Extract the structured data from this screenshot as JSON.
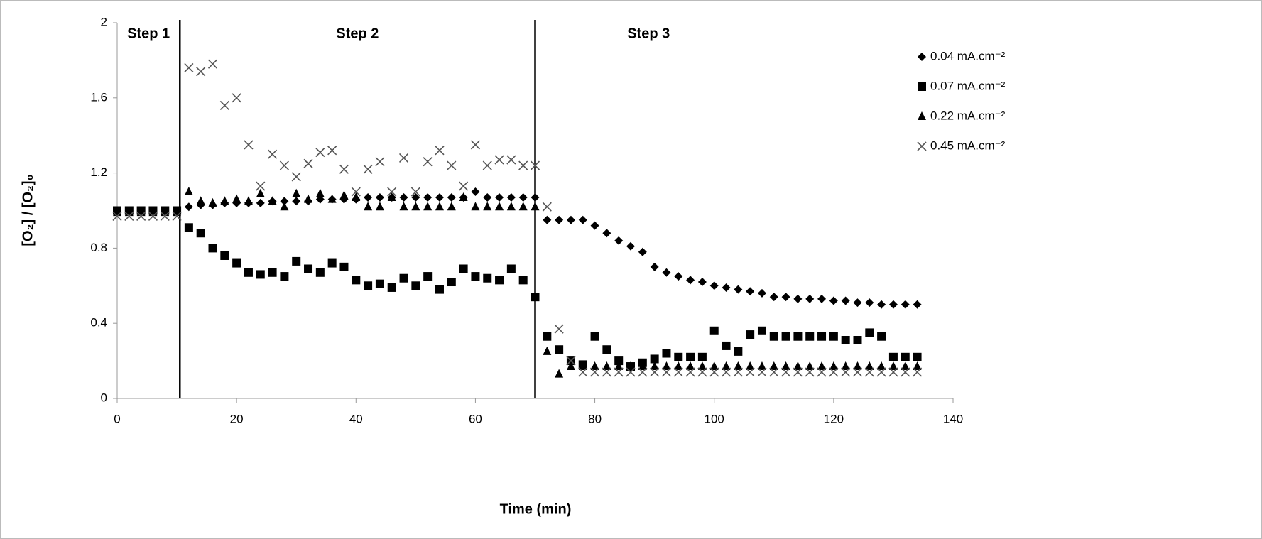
{
  "chart_data": {
    "type": "scatter",
    "x_label": "Time (min)",
    "y_label": "[O₂] / [O₂]₀",
    "annotations": [
      "Step 1",
      "Step 2",
      "Step 3"
    ],
    "vlines": [
      10.5,
      70
    ],
    "xlim": [
      0,
      140
    ],
    "xticks": [
      0,
      20,
      40,
      60,
      80,
      100,
      120,
      140
    ],
    "ylim": [
      0,
      2
    ],
    "yticks": [
      0,
      0.4,
      0.8,
      1.2,
      1.6,
      2
    ],
    "grid": false,
    "legend": "upper right",
    "x": [
      0,
      2,
      4,
      6,
      8,
      10,
      12,
      14,
      16,
      18,
      20,
      22,
      24,
      26,
      28,
      30,
      32,
      34,
      36,
      38,
      40,
      42,
      44,
      46,
      48,
      50,
      52,
      54,
      56,
      58,
      60,
      62,
      64,
      66,
      68,
      70,
      72,
      74,
      76,
      78,
      80,
      82,
      84,
      86,
      88,
      90,
      92,
      94,
      96,
      98,
      100,
      102,
      104,
      106,
      108,
      110,
      112,
      114,
      116,
      118,
      120,
      122,
      124,
      126,
      128,
      130,
      132,
      134
    ],
    "series": [
      {
        "name": "0.04 mA.cm⁻²",
        "marker": "diamond",
        "color": "#000000",
        "values": [
          1.0,
          1.0,
          1.0,
          1.0,
          1.0,
          1.0,
          1.02,
          1.03,
          1.03,
          1.04,
          1.04,
          1.04,
          1.04,
          1.05,
          1.05,
          1.05,
          1.05,
          1.06,
          1.06,
          1.06,
          1.06,
          1.07,
          1.07,
          1.07,
          1.07,
          1.07,
          1.07,
          1.07,
          1.07,
          1.07,
          1.1,
          1.07,
          1.07,
          1.07,
          1.07,
          1.07,
          0.95,
          0.95,
          0.95,
          0.95,
          0.92,
          0.88,
          0.84,
          0.81,
          0.78,
          0.7,
          0.67,
          0.65,
          0.63,
          0.62,
          0.6,
          0.59,
          0.58,
          0.57,
          0.56,
          0.54,
          0.54,
          0.53,
          0.53,
          0.53,
          0.52,
          0.52,
          0.51,
          0.51,
          0.5,
          0.5,
          0.5,
          0.5
        ]
      },
      {
        "name": "0.07 mA.cm⁻²",
        "marker": "square",
        "color": "#000000",
        "values": [
          1.0,
          1.0,
          1.0,
          1.0,
          1.0,
          1.0,
          0.91,
          0.88,
          0.8,
          0.76,
          0.72,
          0.67,
          0.66,
          0.67,
          0.65,
          0.73,
          0.69,
          0.67,
          0.72,
          0.7,
          0.63,
          0.6,
          0.61,
          0.59,
          0.64,
          0.6,
          0.65,
          0.58,
          0.62,
          0.69,
          0.65,
          0.64,
          0.63,
          0.69,
          0.63,
          0.54,
          0.33,
          0.26,
          0.2,
          0.18,
          0.33,
          0.26,
          0.2,
          0.17,
          0.19,
          0.21,
          0.24,
          0.22,
          0.22,
          0.22,
          0.36,
          0.28,
          0.25,
          0.34,
          0.36,
          0.33,
          0.33,
          0.33,
          0.33,
          0.33,
          0.33,
          0.31,
          0.31,
          0.35,
          0.33,
          0.22,
          0.22,
          0.22
        ]
      },
      {
        "name": "0.22 mA.cm⁻²",
        "marker": "triangle",
        "color": "#000000",
        "values": [
          0.99,
          0.99,
          0.99,
          0.99,
          0.99,
          0.99,
          1.1,
          1.05,
          1.04,
          1.05,
          1.06,
          1.05,
          1.09,
          1.05,
          1.02,
          1.09,
          1.06,
          1.09,
          1.06,
          1.08,
          1.07,
          1.02,
          1.02,
          1.07,
          1.02,
          1.02,
          1.02,
          1.02,
          1.02,
          1.07,
          1.02,
          1.02,
          1.02,
          1.02,
          1.02,
          1.02,
          0.25,
          0.13,
          0.17,
          0.17,
          0.17,
          0.17,
          0.17,
          0.17,
          0.17,
          0.17,
          0.17,
          0.17,
          0.17,
          0.17,
          0.17,
          0.17,
          0.17,
          0.17,
          0.17,
          0.17,
          0.17,
          0.17,
          0.17,
          0.17,
          0.17,
          0.17,
          0.17,
          0.17,
          0.17,
          0.17,
          0.17,
          0.17
        ]
      },
      {
        "name": "0.45 mA.cm⁻²",
        "marker": "x",
        "color": "#555555",
        "values": [
          0.97,
          0.97,
          0.97,
          0.97,
          0.97,
          0.97,
          1.76,
          1.74,
          1.78,
          1.56,
          1.6,
          1.35,
          1.13,
          1.3,
          1.24,
          1.18,
          1.25,
          1.31,
          1.32,
          1.22,
          1.1,
          1.22,
          1.26,
          1.1,
          1.28,
          1.1,
          1.26,
          1.32,
          1.24,
          1.13,
          1.35,
          1.24,
          1.27,
          1.27,
          1.24,
          1.24,
          1.02,
          0.37,
          0.2,
          0.14,
          0.14,
          0.14,
          0.14,
          0.14,
          0.14,
          0.14,
          0.14,
          0.14,
          0.14,
          0.14,
          0.14,
          0.14,
          0.14,
          0.14,
          0.14,
          0.14,
          0.14,
          0.14,
          0.14,
          0.14,
          0.14,
          0.14,
          0.14,
          0.14,
          0.14,
          0.14,
          0.14,
          0.14
        ]
      }
    ]
  }
}
